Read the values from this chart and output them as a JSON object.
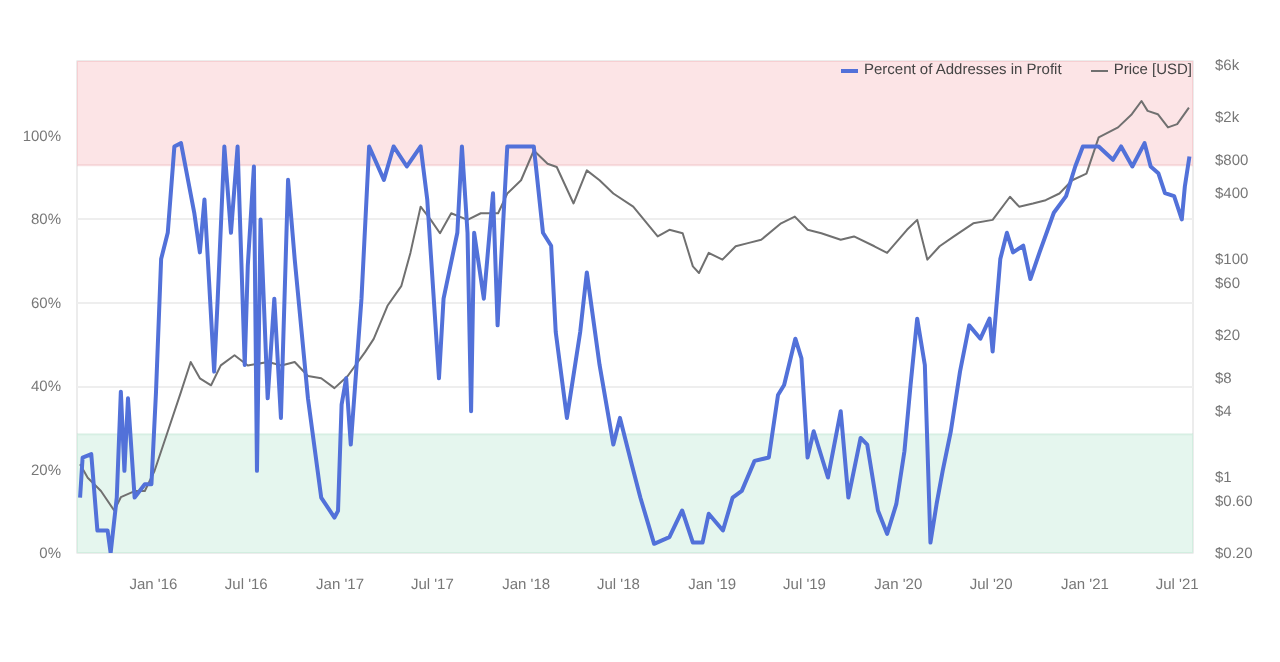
{
  "chart_data": {
    "type": "line",
    "xlim": [
      "2015-08-04",
      "2021-08-01"
    ],
    "xticks": [
      {
        "value": "2016-01-01",
        "label": "Jan '16"
      },
      {
        "value": "2016-07-01",
        "label": "Jul '16"
      },
      {
        "value": "2017-01-01",
        "label": "Jan '17"
      },
      {
        "value": "2017-07-01",
        "label": "Jul '17"
      },
      {
        "value": "2018-01-01",
        "label": "Jan '18"
      },
      {
        "value": "2018-07-01",
        "label": "Jul '18"
      },
      {
        "value": "2019-01-01",
        "label": "Jan '19"
      },
      {
        "value": "2019-07-01",
        "label": "Jul '19"
      },
      {
        "value": "2020-01-01",
        "label": "Jan '20"
      },
      {
        "value": "2020-07-01",
        "label": "Jul '20"
      },
      {
        "value": "2021-01-01",
        "label": "Jan '21"
      },
      {
        "value": "2021-07-01",
        "label": "Jul '21"
      }
    ],
    "ylim": [
      0,
      118
    ],
    "yticks": [
      {
        "value": 0,
        "label": "0%"
      },
      {
        "value": 20,
        "label": "20%"
      },
      {
        "value": 40,
        "label": "40%"
      },
      {
        "value": 60,
        "label": "60%"
      },
      {
        "value": 80,
        "label": "80%"
      },
      {
        "value": 100,
        "label": "100%"
      }
    ],
    "y2lim": [
      0.2,
      6500
    ],
    "y2ticks": [
      {
        "value": 0.2,
        "label": "$0.20"
      },
      {
        "value": 0.6,
        "label": "$0.60"
      },
      {
        "value": 1,
        "label": "$1"
      },
      {
        "value": 4,
        "label": "$4"
      },
      {
        "value": 8,
        "label": "$8"
      },
      {
        "value": 20,
        "label": "$20"
      },
      {
        "value": 60,
        "label": "$60"
      },
      {
        "value": 100,
        "label": "$100"
      },
      {
        "value": 400,
        "label": "$400"
      },
      {
        "value": 800,
        "label": "$800"
      },
      {
        "value": 2000,
        "label": "$2k"
      },
      {
        "value": 6000,
        "label": "$6k"
      }
    ],
    "log": "y2",
    "grid": "y",
    "legend": "top right",
    "marker": "none",
    "line_style": "solid",
    "bands": [
      {
        "axis": "y",
        "from": 93,
        "to": 118,
        "color": "#fce4e6"
      },
      {
        "axis": "y",
        "from": 0,
        "to": 28.5,
        "color": "#e5f6ee"
      }
    ],
    "series": [
      {
        "name": "Price [USD]",
        "color": "#707070",
        "axis": "y2",
        "x": [
          "2015-08-10",
          "2015-08-25",
          "2015-09-20",
          "2015-10-16",
          "2015-10-29",
          "2015-11-25",
          "2015-12-15",
          "2016-01-03",
          "2016-01-29",
          "2016-02-24",
          "2016-03-14",
          "2016-04-01",
          "2016-04-23",
          "2016-05-12",
          "2016-06-08",
          "2016-07-04",
          "2016-08-13",
          "2016-09-08",
          "2016-10-04",
          "2016-10-30",
          "2016-11-25",
          "2016-12-21",
          "2017-01-16",
          "2017-02-19",
          "2017-03-08",
          "2017-04-04",
          "2017-05-01",
          "2017-05-19",
          "2017-06-08",
          "2017-06-28",
          "2017-07-16",
          "2017-08-07",
          "2017-09-08",
          "2017-10-04",
          "2017-11-07",
          "2017-11-25",
          "2017-12-22",
          "2018-01-16",
          "2018-02-12",
          "2018-03-02",
          "2018-04-04",
          "2018-04-30",
          "2018-05-25",
          "2018-06-21",
          "2018-07-30",
          "2018-09-16",
          "2018-10-09",
          "2018-11-04",
          "2018-11-24",
          "2018-12-06",
          "2018-12-25",
          "2019-01-21",
          "2019-02-16",
          "2019-03-12",
          "2019-04-07",
          "2019-05-16",
          "2019-06-12",
          "2019-07-07",
          "2019-08-03",
          "2019-09-10",
          "2019-10-06",
          "2019-11-15",
          "2019-12-10",
          "2020-01-18",
          "2020-02-07",
          "2020-02-27",
          "2020-03-22",
          "2020-04-19",
          "2020-05-27",
          "2020-07-04",
          "2020-08-07",
          "2020-08-25",
          "2020-09-21",
          "2020-10-16",
          "2020-11-12",
          "2020-12-07",
          "2021-01-04",
          "2021-01-28",
          "2021-03-07",
          "2021-04-03",
          "2021-04-22",
          "2021-05-04",
          "2021-05-24",
          "2021-06-13",
          "2021-07-01",
          "2021-07-24"
        ],
        "values": [
          1.3,
          0.98,
          0.74,
          0.49,
          0.65,
          0.74,
          0.74,
          1.13,
          2.6,
          6.0,
          11.3,
          8.0,
          6.9,
          10.5,
          13,
          10.5,
          11.3,
          10.5,
          11.3,
          8.4,
          8.0,
          6.5,
          8.4,
          13.9,
          18.4,
          37,
          56,
          113,
          300,
          227,
          171,
          261,
          227,
          261,
          261,
          396,
          524,
          982,
          743,
          693,
          321,
          646,
          524,
          396,
          300,
          160,
          184,
          171,
          85,
          74,
          113,
          98,
          130,
          139,
          149,
          211,
          243,
          184,
          171,
          149,
          160,
          130,
          113,
          184,
          227,
          98,
          130,
          160,
          211,
          227,
          370,
          300,
          321,
          344,
          396,
          524,
          602,
          1297,
          1600,
          2114,
          2794,
          2268,
          2114,
          1600,
          1714,
          2432
        ]
      },
      {
        "name": "Percent of Addresses in Profit",
        "color": "#5271d9",
        "axis": "y",
        "x": [
          "2015-08-10",
          "2015-08-15",
          "2015-09-01",
          "2015-09-13",
          "2015-10-03",
          "2015-10-09",
          "2015-10-21",
          "2015-10-29",
          "2015-11-05",
          "2015-11-12",
          "2015-11-25",
          "2015-12-15",
          "2015-12-28",
          "2016-01-06",
          "2016-01-16",
          "2016-01-29",
          "2016-02-11",
          "2016-02-24",
          "2016-03-21",
          "2016-04-01",
          "2016-04-10",
          "2016-04-29",
          "2016-05-06",
          "2016-05-19",
          "2016-06-01",
          "2016-06-14",
          "2016-06-28",
          "2016-07-04",
          "2016-07-16",
          "2016-07-22",
          "2016-07-29",
          "2016-08-12",
          "2016-08-25",
          "2016-09-07",
          "2016-09-21",
          "2016-10-04",
          "2016-10-30",
          "2016-11-25",
          "2016-12-21",
          "2016-12-28",
          "2017-01-04",
          "2017-01-13",
          "2017-01-22",
          "2017-02-12",
          "2017-02-27",
          "2017-03-28",
          "2017-04-16",
          "2017-05-12",
          "2017-06-08",
          "2017-06-21",
          "2017-07-14",
          "2017-07-23",
          "2017-08-19",
          "2017-08-28",
          "2017-09-08",
          "2017-09-15",
          "2017-09-21",
          "2017-10-10",
          "2017-10-28",
          "2017-11-06",
          "2017-11-25",
          "2018-01-03",
          "2018-01-16",
          "2018-02-03",
          "2018-02-19",
          "2018-02-28",
          "2018-03-22",
          "2018-04-17",
          "2018-04-30",
          "2018-05-25",
          "2018-06-21",
          "2018-07-04",
          "2018-07-27",
          "2018-08-13",
          "2018-09-09",
          "2018-10-09",
          "2018-11-03",
          "2018-11-24",
          "2018-12-13",
          "2018-12-25",
          "2019-01-22",
          "2019-02-10",
          "2019-02-28",
          "2019-03-25",
          "2019-04-22",
          "2019-05-10",
          "2019-05-22",
          "2019-06-13",
          "2019-06-25",
          "2019-07-07",
          "2019-07-19",
          "2019-08-16",
          "2019-09-10",
          "2019-09-25",
          "2019-10-19",
          "2019-11-01",
          "2019-11-22",
          "2019-12-10",
          "2019-12-28",
          "2020-01-13",
          "2020-01-25",
          "2020-02-07",
          "2020-02-22",
          "2020-03-04",
          "2020-03-16",
          "2020-03-28",
          "2020-04-13",
          "2020-05-01",
          "2020-05-19",
          "2020-06-10",
          "2020-06-28",
          "2020-07-04",
          "2020-07-19",
          "2020-08-01",
          "2020-08-13",
          "2020-09-02",
          "2020-09-16",
          "2020-10-04",
          "2020-11-01",
          "2020-11-25",
          "2020-12-13",
          "2020-12-28",
          "2021-01-28",
          "2021-02-25",
          "2021-03-13",
          "2021-04-04",
          "2021-04-28",
          "2021-05-10",
          "2021-05-25",
          "2021-06-07",
          "2021-06-25",
          "2021-07-10",
          "2021-07-16",
          "2021-07-25"
        ],
        "values": [
          13.3,
          22.9,
          23.7,
          5.4,
          5.4,
          0,
          13.3,
          38.7,
          19.7,
          37.1,
          13.3,
          16.5,
          16.5,
          38.7,
          70.5,
          76.8,
          97.5,
          98.3,
          81.6,
          72.1,
          84.8,
          43.5,
          61,
          97.5,
          76.8,
          97.5,
          45.1,
          68.9,
          92.7,
          19.7,
          80,
          37.1,
          61,
          32.4,
          89.5,
          70.5,
          37.1,
          13.3,
          8.5,
          10.1,
          35.6,
          41.9,
          26,
          61,
          97.5,
          89.5,
          97.5,
          92.7,
          97.5,
          84.8,
          41.9,
          61,
          76.8,
          97.5,
          76.8,
          34,
          76.8,
          61,
          86.3,
          54.6,
          97.5,
          97.5,
          97.5,
          76.8,
          73.7,
          53,
          32.4,
          53,
          67.3,
          45.1,
          26,
          32.4,
          21.3,
          13.3,
          2.2,
          3.8,
          10.2,
          2.5,
          2.5,
          9.4,
          5.4,
          13.3,
          14.9,
          22.1,
          22.9,
          37.9,
          40.3,
          51.4,
          46.7,
          22.9,
          29.2,
          18.1,
          34,
          13.3,
          27.6,
          26,
          10.2,
          4.6,
          11.7,
          24.4,
          40.3,
          56.2,
          45.1,
          2.5,
          11.7,
          19.7,
          29.2,
          43.5,
          54.6,
          51.4,
          56.2,
          48.3,
          70.5,
          76.8,
          72.1,
          73.7,
          65.7,
          72.1,
          81.6,
          85.6,
          92.7,
          97.5,
          97.5,
          94.3,
          97.5,
          92.7,
          98.3,
          92.7,
          91.1,
          86.3,
          85.6,
          80,
          87.9,
          95.1
        ]
      }
    ]
  }
}
